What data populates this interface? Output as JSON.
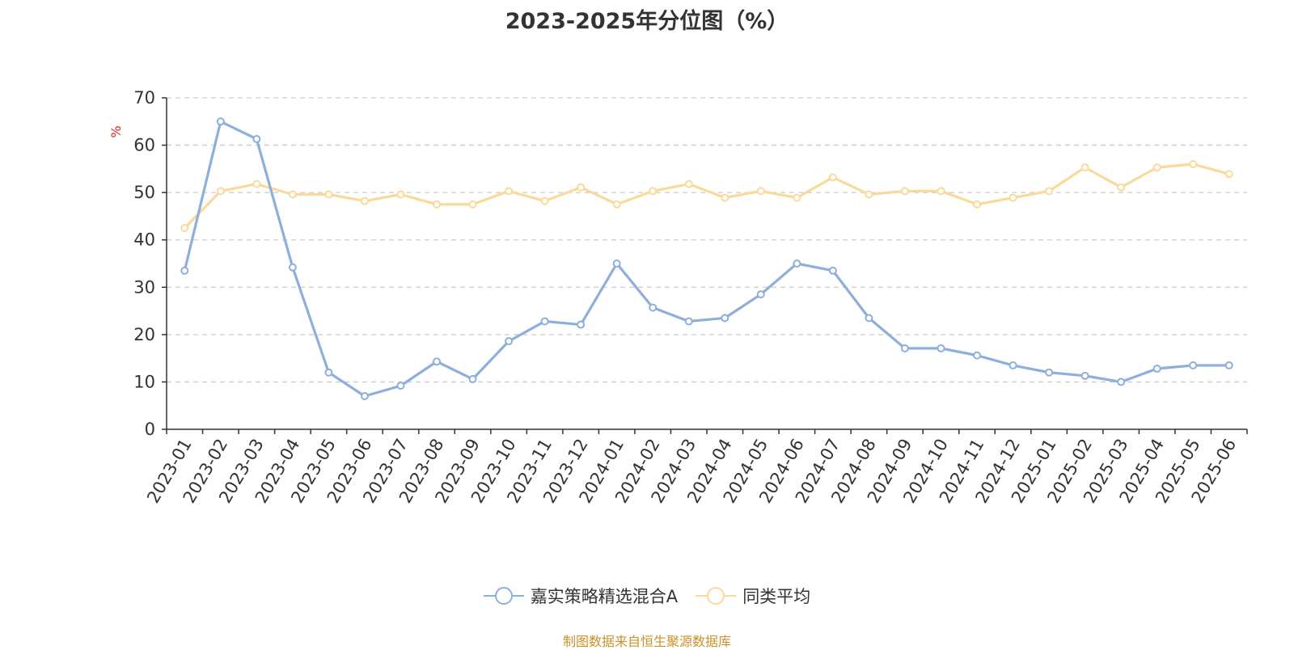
{
  "title": "2023-2025年分位图（%）",
  "source_note": "制图数据来自恒生聚源数据库",
  "colors": {
    "series_fund": "#8eaedb",
    "series_avg": "#fad99a",
    "unit_label": "#e02020",
    "grid": "#cccccc",
    "axis": "#333333",
    "source_note": "#c8932a"
  },
  "chart_data": {
    "type": "line",
    "title": "2023-2025年分位图（%）",
    "ylabel": "%",
    "ylim": [
      0,
      70
    ],
    "yticks": [
      0,
      10,
      20,
      30,
      40,
      50,
      60,
      70
    ],
    "grid": true,
    "legend_position": "bottom",
    "categories": [
      "2023-01",
      "2023-02",
      "2023-03",
      "2023-04",
      "2023-05",
      "2023-06",
      "2023-07",
      "2023-08",
      "2023-09",
      "2023-10",
      "2023-11",
      "2023-12",
      "2024-01",
      "2024-02",
      "2024-03",
      "2024-04",
      "2024-05",
      "2024-06",
      "2024-07",
      "2024-08",
      "2024-09",
      "2024-10",
      "2024-11",
      "2024-12",
      "2025-01",
      "2025-02",
      "2025-03",
      "2025-04",
      "2025-05",
      "2025-06"
    ],
    "series": [
      {
        "name": "嘉实策略精选混合A",
        "color": "#8eaedb",
        "values": [
          33.5,
          65,
          61.3,
          34.2,
          12,
          7,
          9.2,
          14.3,
          10.6,
          18.6,
          22.8,
          22.1,
          35,
          25.7,
          22.8,
          23.5,
          28.5,
          35,
          33.5,
          23.5,
          17.1,
          17.1,
          15.6,
          13.5,
          12,
          11.3,
          10,
          12.8,
          13.5,
          13.5
        ]
      },
      {
        "name": "同类平均",
        "color": "#fad99a",
        "values": [
          42.5,
          50.3,
          51.8,
          49.6,
          49.6,
          48.2,
          49.6,
          47.5,
          47.5,
          50.3,
          48.2,
          51.1,
          47.5,
          50.3,
          51.8,
          48.9,
          50.3,
          48.9,
          53.2,
          49.6,
          50.3,
          50.3,
          47.5,
          48.9,
          50.3,
          55.3,
          51.1,
          55.3,
          56,
          53.9
        ]
      }
    ]
  }
}
